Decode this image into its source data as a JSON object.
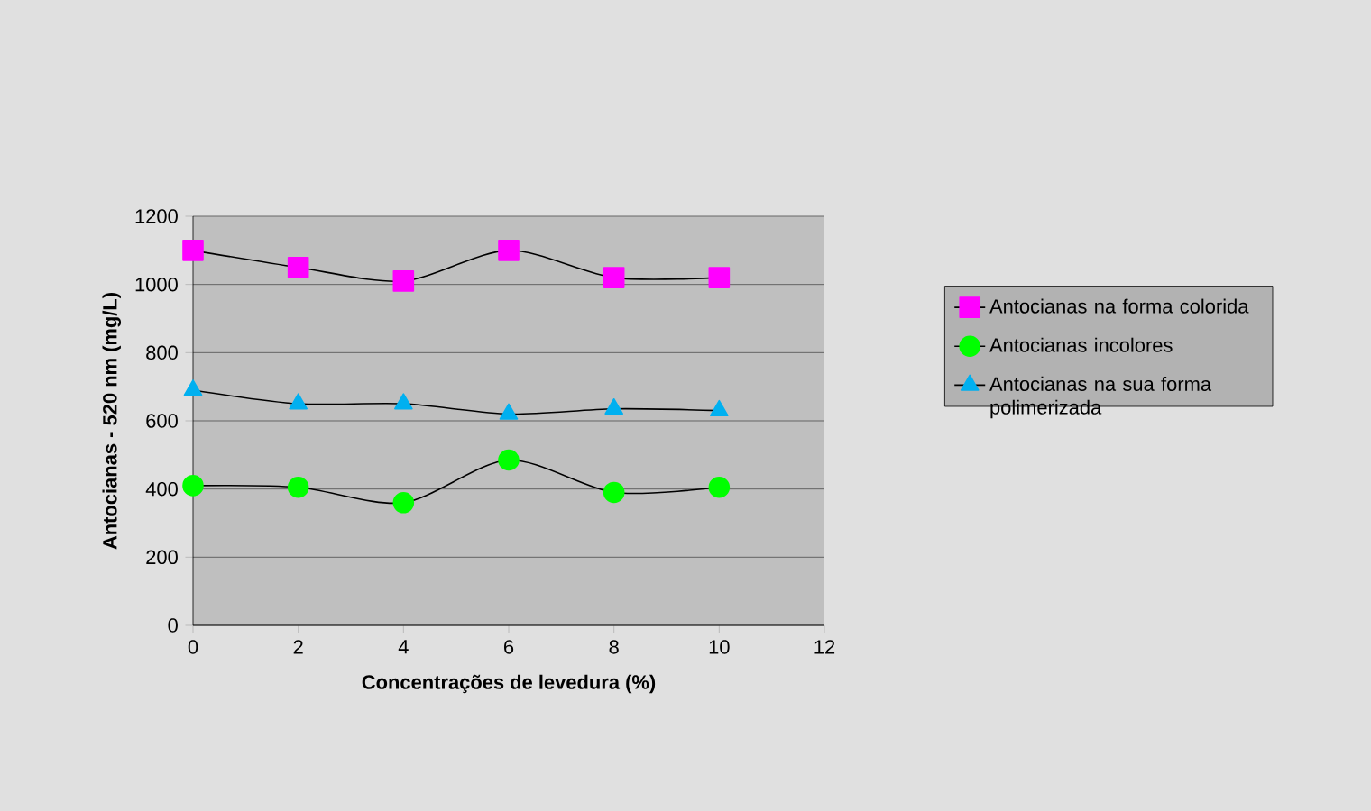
{
  "chart_data": {
    "type": "line",
    "xlabel": "Concentrações de levedura (%)",
    "ylabel": "Antocianas - 520 nm (mg/L)",
    "x": [
      0,
      2,
      4,
      6,
      8,
      10
    ],
    "series": [
      {
        "name": "Antocianas na forma colorida",
        "color": "#ff00ff",
        "marker": "square",
        "values": [
          1100,
          1050,
          1010,
          1100,
          1020,
          1020
        ]
      },
      {
        "name": "Antocianas incolores",
        "color": "#00ff00",
        "marker": "circle",
        "values": [
          410,
          405,
          360,
          485,
          390,
          405
        ]
      },
      {
        "name": "Antocianas na sua forma polimerizada",
        "color": "#00b0f0",
        "marker": "triangle",
        "values": [
          690,
          650,
          650,
          620,
          635,
          630
        ]
      }
    ],
    "xlim": [
      0,
      12
    ],
    "xticks": [
      0,
      2,
      4,
      6,
      8,
      10,
      12
    ],
    "ylim": [
      0,
      1200
    ],
    "yticks": [
      0,
      200,
      400,
      600,
      800,
      1000,
      1200
    ],
    "grid": "y",
    "legend": "right"
  }
}
